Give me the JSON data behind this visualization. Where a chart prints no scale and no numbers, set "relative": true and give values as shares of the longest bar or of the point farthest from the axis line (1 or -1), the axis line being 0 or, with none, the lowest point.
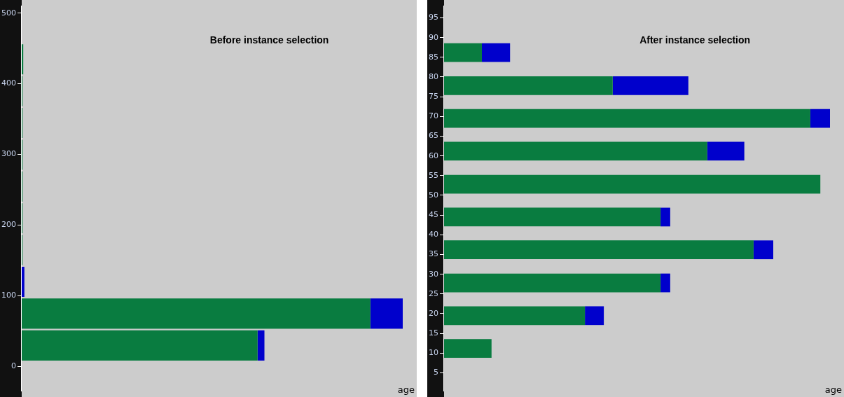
{
  "chart_data": [
    {
      "type": "bar",
      "title": "Before instance selection",
      "xlabel": "age",
      "orientation": "horizontal",
      "stacked": true,
      "relative": true,
      "x": [
        29.5,
        74.5,
        119.5,
        164.5,
        209.5,
        254.5,
        299.5,
        344.5,
        389.5,
        434.5
      ],
      "ylim": [
        -35,
        510
      ],
      "yticks": [
        0,
        100,
        200,
        300,
        400,
        500
      ],
      "series": [
        {
          "color": "#097c40",
          "values": [
            0.619,
            0.915,
            null,
            0.002,
            0.002,
            0.002,
            0.002,
            0.002,
            0.002,
            0.004
          ]
        },
        {
          "color": "#0000cc",
          "values": [
            0.018,
            0.085,
            0.007,
            null,
            null,
            null,
            null,
            null,
            null,
            null
          ]
        }
      ]
    },
    {
      "type": "bar",
      "title": "After instance selection",
      "xlabel": "age",
      "orientation": "horizontal",
      "stacked": true,
      "relative": true,
      "x": [
        11.2,
        19.5,
        27.8,
        36.2,
        44.5,
        52.8,
        61.2,
        69.5,
        77.8,
        86.2
      ],
      "ylim": [
        0.4,
        98
      ],
      "yticks": [
        5,
        10,
        15,
        20,
        25,
        30,
        35,
        40,
        45,
        50,
        55,
        60,
        65,
        70,
        75,
        80,
        85,
        90,
        95
      ],
      "series": [
        {
          "color": "#097c40",
          "values": [
            0.123,
            0.365,
            0.561,
            0.802,
            0.561,
            0.975,
            0.682,
            0.949,
            0.437,
            0.098
          ]
        },
        {
          "color": "#0000cc",
          "values": [
            null,
            0.049,
            0.025,
            0.051,
            0.025,
            null,
            0.096,
            0.051,
            0.196,
            0.073
          ]
        }
      ]
    }
  ]
}
